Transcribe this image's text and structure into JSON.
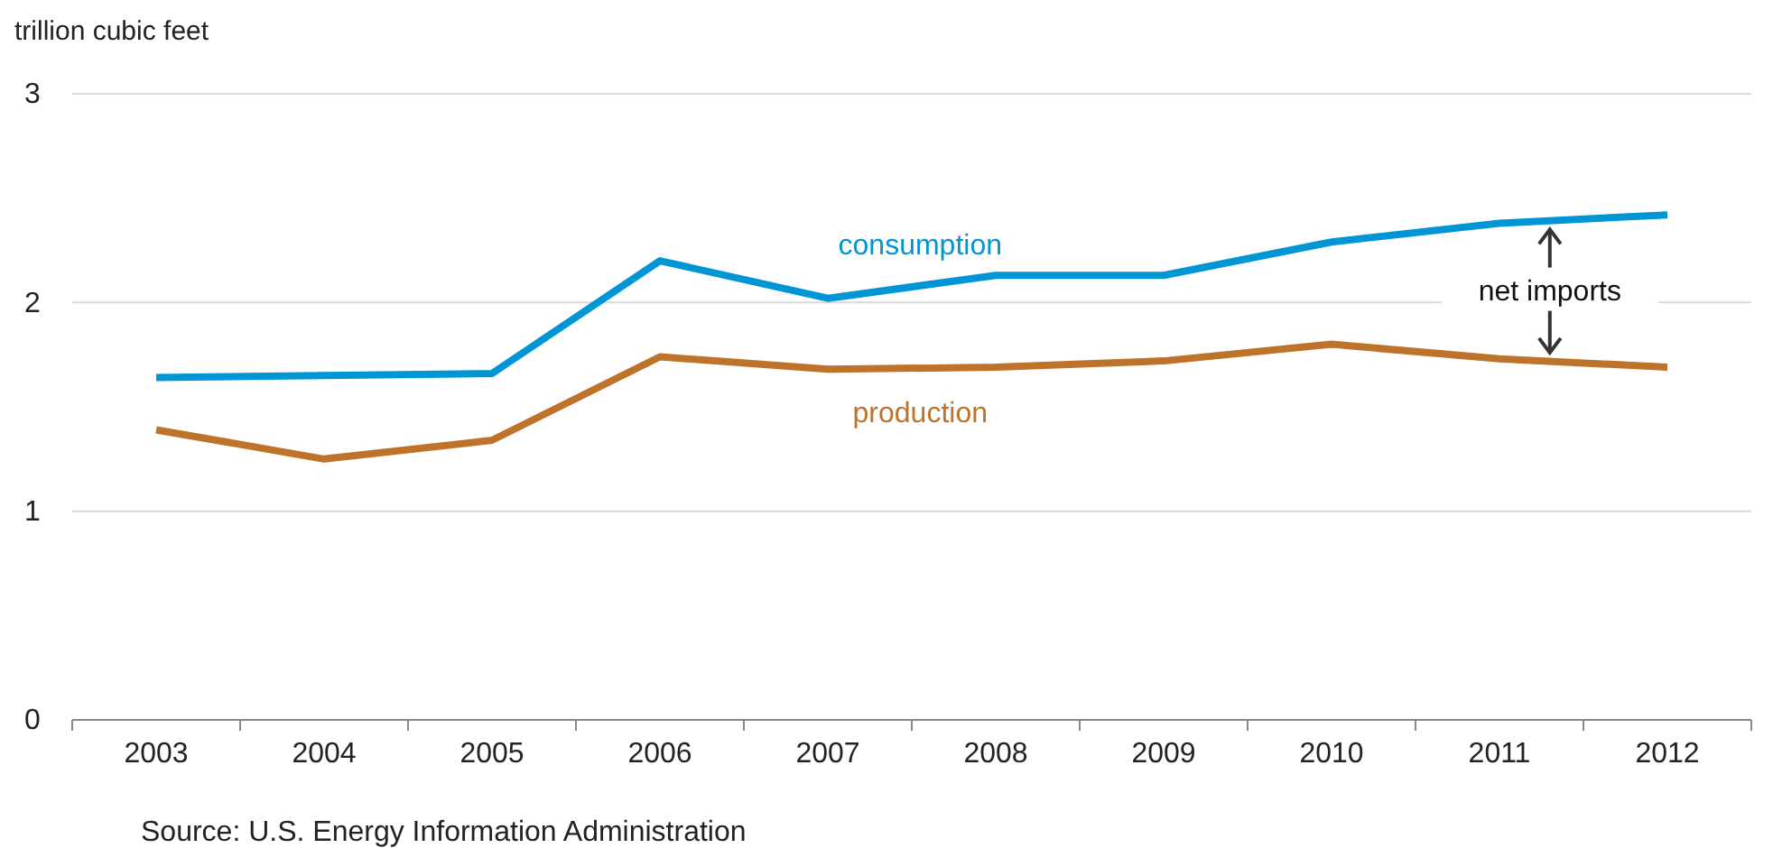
{
  "chart_data": {
    "type": "line",
    "ylabel": "trillion cubic feet",
    "categories": [
      "2003",
      "2004",
      "2005",
      "2006",
      "2007",
      "2008",
      "2009",
      "2010",
      "2011",
      "2012"
    ],
    "series": [
      {
        "name": "consumption",
        "color": "#0096d6",
        "values": [
          1.64,
          1.65,
          1.66,
          2.2,
          2.02,
          2.13,
          2.13,
          2.29,
          2.38,
          2.42
        ]
      },
      {
        "name": "production",
        "color": "#bd732a",
        "values": [
          1.39,
          1.25,
          1.34,
          1.74,
          1.68,
          1.69,
          1.72,
          1.8,
          1.73,
          1.69
        ]
      }
    ],
    "ylim": [
      0,
      3
    ],
    "yticks": [
      0,
      1,
      2,
      3
    ],
    "grid": "y",
    "legend": false,
    "marker": "none",
    "line_style": "solid",
    "annotations": [
      {
        "text": "net imports",
        "x": "2011",
        "y": 2.38
      },
      "Source: U.S. Energy Information Administration"
    ]
  }
}
